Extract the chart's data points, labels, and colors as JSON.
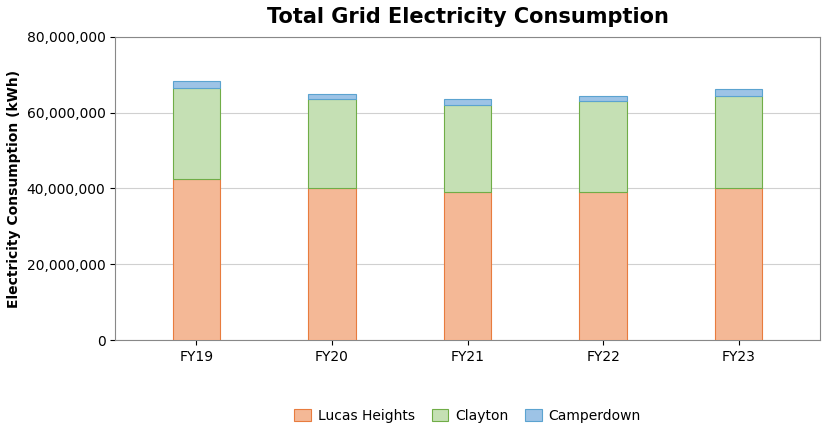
{
  "title": "Total Grid Electricity Consumption",
  "ylabel": "Electricity Consumption (kWh)",
  "categories": [
    "FY19",
    "FY20",
    "FY21",
    "FY22",
    "FY23"
  ],
  "series": {
    "Lucas Heights": [
      42500000,
      40000000,
      39000000,
      39000000,
      40000000
    ],
    "Clayton": [
      24000000,
      23500000,
      23000000,
      24000000,
      24500000
    ],
    "Camperdown": [
      1800000,
      1500000,
      1500000,
      1500000,
      1800000
    ]
  },
  "colors": {
    "Lucas Heights": "#F4B896",
    "Clayton": "#C5E0B4",
    "Camperdown": "#9DC3E6"
  },
  "edge_colors": {
    "Lucas Heights": "#E87C3E",
    "Clayton": "#70AD47",
    "Camperdown": "#5BA3D0"
  },
  "legend_labels": [
    "Lucas Heights",
    "Clayton",
    "Camperdown"
  ],
  "ylim": [
    0,
    80000000
  ],
  "yticks": [
    0,
    20000000,
    40000000,
    60000000,
    80000000
  ],
  "bar_width": 0.35,
  "title_fontsize": 15,
  "axis_label_fontsize": 10,
  "tick_fontsize": 10,
  "legend_fontsize": 10,
  "background_color": "#ffffff",
  "grid_color": "#d0d0d0"
}
